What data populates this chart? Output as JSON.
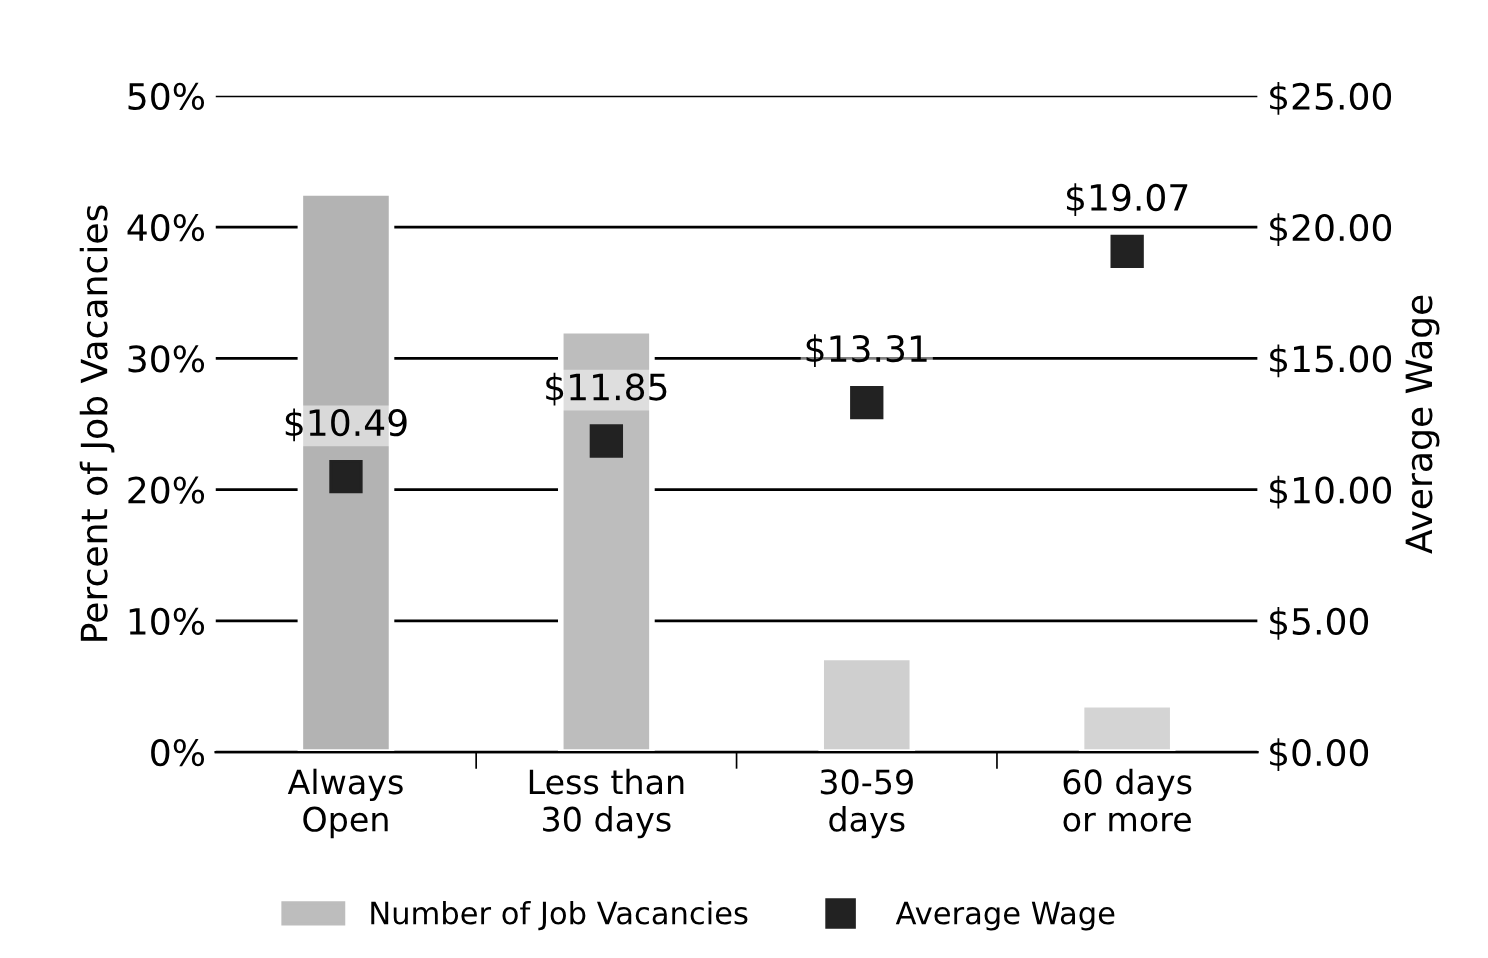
{
  "chart_data": {
    "type": "bar",
    "categories": [
      "Always\nOpen",
      "Less than\n30 days",
      "30-59\ndays",
      "60 days\nor more"
    ],
    "series": [
      {
        "name": "Number of Job Vacancies",
        "color": "#bdbdbd",
        "colors": [
          "#b3b3b3",
          "#bdbdbd",
          "#cfcfcf",
          "#d4d4d4"
        ],
        "values": [
          42.6,
          32.1,
          7.2,
          3.6
        ]
      },
      {
        "name": "Average Wage",
        "type": "scatter",
        "axis": "y2",
        "color": "#222222",
        "marker": "square",
        "values": [
          10.49,
          11.85,
          13.31,
          19.07
        ],
        "value_labels": [
          "$10.49",
          "$11.85",
          "$13.31",
          "$19.07"
        ]
      }
    ],
    "ylabel": "Percent of Job Vacancies",
    "y2label": "Average Wage",
    "ylim": [
      0,
      50
    ],
    "yticks": [
      {
        "value": 0,
        "label": "0%"
      },
      {
        "value": 10,
        "label": "10%"
      },
      {
        "value": 20,
        "label": "20%"
      },
      {
        "value": 30,
        "label": "30%"
      },
      {
        "value": 40,
        "label": "40%"
      },
      {
        "value": 50,
        "label": "50%"
      }
    ],
    "y2lim": [
      0,
      25
    ],
    "y2ticks": [
      {
        "value": 0,
        "label": "$0.00"
      },
      {
        "value": 5,
        "label": "$5.00"
      },
      {
        "value": 10,
        "label": "$10.00"
      },
      {
        "value": 15,
        "label": "$15.00"
      },
      {
        "value": 20,
        "label": "$20.00"
      },
      {
        "value": 25,
        "label": "$25.00"
      }
    ],
    "grid": "y",
    "legend": "bottom"
  }
}
